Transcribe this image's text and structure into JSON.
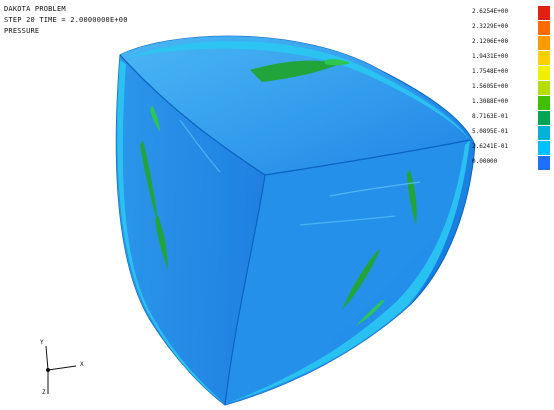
{
  "header": {
    "line1": "DAKOTA PROBLEM",
    "line2": "STEP 20   TIME = 2.0000000E+00",
    "line3": "PRESSURE"
  },
  "legend": {
    "labels": [
      "2.6254E+00",
      "2.3229E+00",
      "2.1206E+00",
      "1.9431E+00",
      "1.7548E+00",
      "1.5605E+00",
      "1.3088E+00",
      "8.7163E-01",
      "5.0895E-01",
      "2.6241E-01",
      "0.00000"
    ],
    "colors": [
      "#e11f13",
      "#ff6b00",
      "#ff9a00",
      "#ffd000",
      "#f0f000",
      "#b4de00",
      "#40be00",
      "#00a653",
      "#00b2d8",
      "#00bfff",
      "#1f6fff"
    ]
  },
  "triad": {
    "axis_y": "Y",
    "axis_x": "X",
    "axis_z": "Z"
  },
  "colors": {
    "surface_main": "#1f86e6",
    "surface_light": "#36a9f2",
    "surface_cyan": "#2ac6f2",
    "surface_green": "#21a53a",
    "surface_green_light": "#2cc650",
    "edge": "#005fbf"
  }
}
